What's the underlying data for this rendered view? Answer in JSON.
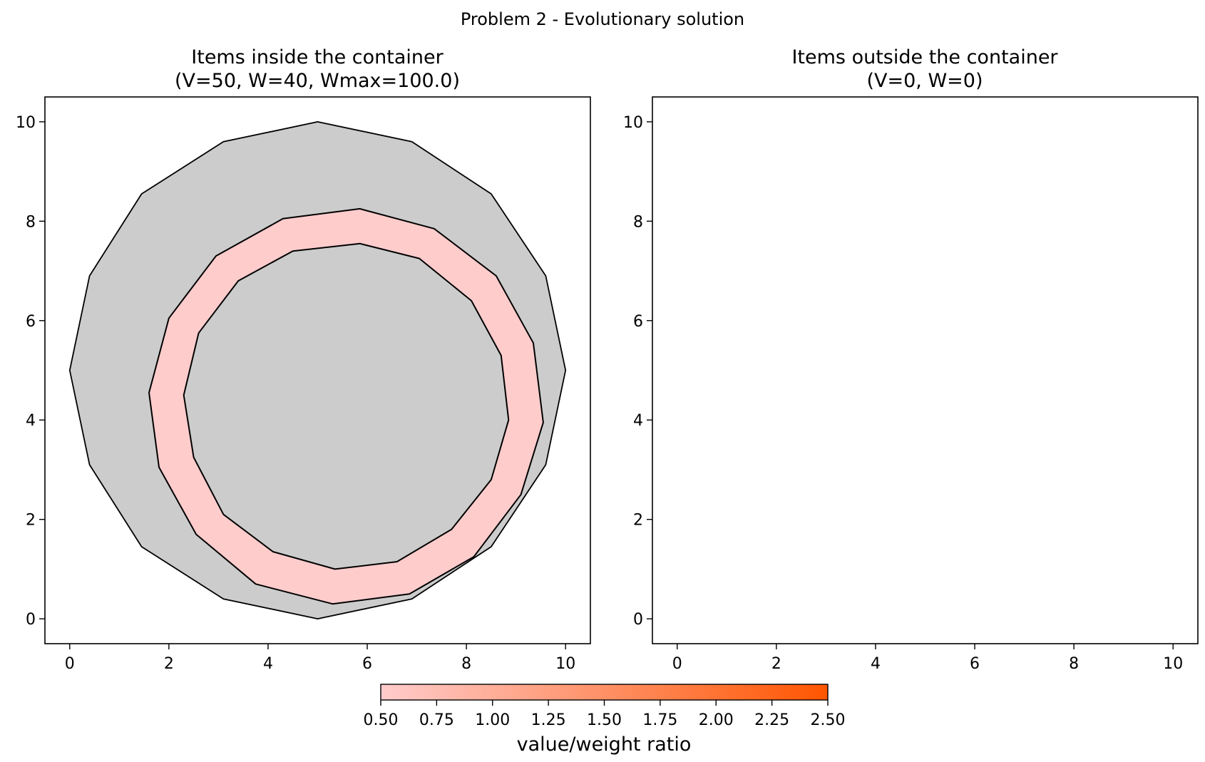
{
  "figure": {
    "suptitle": "Problem 2 - Evolutionary solution"
  },
  "chart_data": [
    {
      "type": "polygon-plot",
      "title_line1": "Items inside the container",
      "title_line2": "(V=50, W=40, Wmax=100.0)",
      "xlabel": "",
      "ylabel": "",
      "xlim": [
        -0.5,
        10.5
      ],
      "ylim": [
        -0.5,
        10.5
      ],
      "xticks": [
        0,
        2,
        4,
        6,
        8,
        10
      ],
      "yticks": [
        0,
        2,
        4,
        6,
        8,
        10
      ],
      "grid": false,
      "container": {
        "fill": "#cccccc",
        "stroke": "#000000",
        "points": [
          [
            10,
            5
          ],
          [
            9.6,
            6.9
          ],
          [
            8.5,
            8.55
          ],
          [
            6.9,
            9.6
          ],
          [
            5,
            10
          ],
          [
            3.1,
            9.6
          ],
          [
            1.45,
            8.55
          ],
          [
            0.4,
            6.9
          ],
          [
            0,
            5
          ],
          [
            0.4,
            3.1
          ],
          [
            1.45,
            1.45
          ],
          [
            3.1,
            0.4
          ],
          [
            5,
            0
          ],
          [
            6.9,
            0.4
          ],
          [
            8.5,
            1.45
          ],
          [
            9.6,
            3.1
          ]
        ]
      },
      "item": {
        "fill": "#ffcccc",
        "stroke": "#000000",
        "ratio": 0.5,
        "outer": [
          [
            9.55,
            3.95
          ],
          [
            9.35,
            5.55
          ],
          [
            8.6,
            6.9
          ],
          [
            7.35,
            7.85
          ],
          [
            5.85,
            8.25
          ],
          [
            4.3,
            8.05
          ],
          [
            2.95,
            7.3
          ],
          [
            2.0,
            6.05
          ],
          [
            1.6,
            4.55
          ],
          [
            1.8,
            3.05
          ],
          [
            2.55,
            1.7
          ],
          [
            3.75,
            0.7
          ],
          [
            5.3,
            0.3
          ],
          [
            6.85,
            0.5
          ],
          [
            8.15,
            1.25
          ],
          [
            9.1,
            2.5
          ]
        ],
        "inner": [
          [
            8.85,
            4.0
          ],
          [
            8.7,
            5.3
          ],
          [
            8.1,
            6.4
          ],
          [
            7.05,
            7.25
          ],
          [
            5.85,
            7.55
          ],
          [
            4.5,
            7.4
          ],
          [
            3.4,
            6.8
          ],
          [
            2.6,
            5.75
          ],
          [
            2.3,
            4.5
          ],
          [
            2.5,
            3.25
          ],
          [
            3.1,
            2.1
          ],
          [
            4.1,
            1.35
          ],
          [
            5.35,
            1.0
          ],
          [
            6.6,
            1.15
          ],
          [
            7.7,
            1.8
          ],
          [
            8.5,
            2.8
          ]
        ]
      }
    },
    {
      "type": "polygon-plot",
      "title_line1": "Items outside the container",
      "title_line2": "(V=0, W=0)",
      "xlabel": "",
      "ylabel": "",
      "xlim": [
        -0.5,
        10.5
      ],
      "ylim": [
        -0.5,
        10.5
      ],
      "xticks": [
        0,
        2,
        4,
        6,
        8,
        10
      ],
      "yticks": [
        0,
        2,
        4,
        6,
        8,
        10
      ],
      "grid": false,
      "items": []
    }
  ],
  "colorbar": {
    "label": "value/weight ratio",
    "min": 0.5,
    "max": 2.5,
    "ticks": [
      "0.50",
      "0.75",
      "1.00",
      "1.25",
      "1.50",
      "1.75",
      "2.00",
      "2.25",
      "2.50"
    ],
    "color_low": "#ffcccc",
    "color_high": "#ff5500"
  }
}
